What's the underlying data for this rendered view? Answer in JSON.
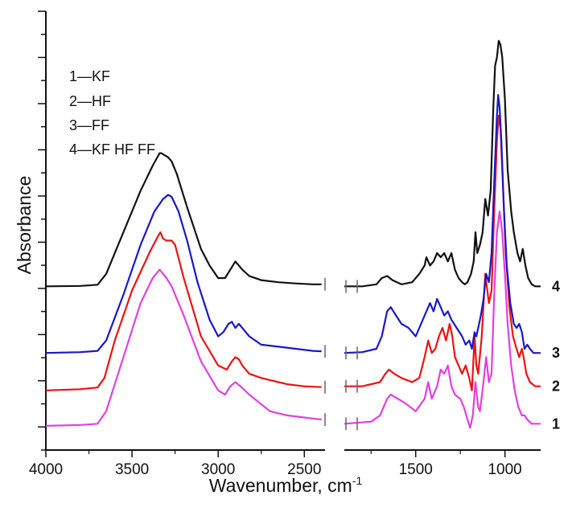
{
  "chart_data": {
    "type": "line",
    "title": "",
    "xlabel": "Wavenumber, cm",
    "xlabel_superscript": "-1",
    "ylabel": "Absorbance",
    "x_reversed": true,
    "axis_break": [
      2380,
      1900
    ],
    "xlim": [
      4000,
      800
    ],
    "ylim": [
      0,
      1
    ],
    "x_ticks": [
      4000,
      3500,
      3000,
      2500,
      1500,
      1000
    ],
    "x_tick_labels": [
      "4000",
      "3500",
      "3000",
      "2500",
      "1500",
      "1000"
    ],
    "y_ticks_shown_without_labels": true,
    "legend": [
      "1—KF",
      "2—HF",
      "3—FF",
      "4—KF HF FF"
    ],
    "series": [
      {
        "name": "1",
        "label": "1",
        "color": "#e040e0",
        "points": [
          [
            4000,
            0.035
          ],
          [
            3800,
            0.037
          ],
          [
            3700,
            0.04
          ],
          [
            3650,
            0.07
          ],
          [
            3550,
            0.2
          ],
          [
            3450,
            0.33
          ],
          [
            3380,
            0.39
          ],
          [
            3340,
            0.41
          ],
          [
            3320,
            0.4
          ],
          [
            3300,
            0.39
          ],
          [
            3270,
            0.37
          ],
          [
            3200,
            0.3
          ],
          [
            3100,
            0.19
          ],
          [
            3000,
            0.12
          ],
          [
            2960,
            0.11
          ],
          [
            2930,
            0.13
          ],
          [
            2900,
            0.14
          ],
          [
            2870,
            0.13
          ],
          [
            2820,
            0.11
          ],
          [
            2700,
            0.07
          ],
          [
            2600,
            0.06
          ],
          [
            2500,
            0.055
          ],
          [
            2400,
            0.05
          ],
          [
            1900,
            0.04
          ],
          [
            1750,
            0.045
          ],
          [
            1700,
            0.06
          ],
          [
            1660,
            0.1
          ],
          [
            1640,
            0.11
          ],
          [
            1600,
            0.1
          ],
          [
            1560,
            0.09
          ],
          [
            1500,
            0.07
          ],
          [
            1450,
            0.1
          ],
          [
            1430,
            0.14
          ],
          [
            1410,
            0.1
          ],
          [
            1380,
            0.13
          ],
          [
            1360,
            0.17
          ],
          [
            1340,
            0.16
          ],
          [
            1320,
            0.18
          ],
          [
            1300,
            0.13
          ],
          [
            1280,
            0.11
          ],
          [
            1250,
            0.1
          ],
          [
            1230,
            0.08
          ],
          [
            1210,
            0.05
          ],
          [
            1195,
            0.03
          ],
          [
            1180,
            0.06
          ],
          [
            1165,
            0.14
          ],
          [
            1150,
            0.08
          ],
          [
            1140,
            0.07
          ],
          [
            1120,
            0.14
          ],
          [
            1105,
            0.2
          ],
          [
            1090,
            0.14
          ],
          [
            1075,
            0.16
          ],
          [
            1060,
            0.35
          ],
          [
            1045,
            0.5
          ],
          [
            1030,
            0.55
          ],
          [
            1015,
            0.5
          ],
          [
            1000,
            0.4
          ],
          [
            985,
            0.28
          ],
          [
            965,
            0.18
          ],
          [
            945,
            0.12
          ],
          [
            925,
            0.08
          ],
          [
            905,
            0.06
          ],
          [
            890,
            0.06
          ],
          [
            875,
            0.05
          ],
          [
            850,
            0.04
          ],
          [
            820,
            0.04
          ],
          [
            800,
            0.04
          ]
        ]
      },
      {
        "name": "2",
        "label": "2",
        "color": "#ee1111",
        "points": [
          [
            4000,
            0.12
          ],
          [
            3800,
            0.123
          ],
          [
            3700,
            0.127
          ],
          [
            3660,
            0.15
          ],
          [
            3600,
            0.24
          ],
          [
            3500,
            0.36
          ],
          [
            3400,
            0.45
          ],
          [
            3350,
            0.49
          ],
          [
            3335,
            0.5
          ],
          [
            3320,
            0.485
          ],
          [
            3300,
            0.48
          ],
          [
            3270,
            0.48
          ],
          [
            3250,
            0.47
          ],
          [
            3200,
            0.39
          ],
          [
            3150,
            0.32
          ],
          [
            3100,
            0.25
          ],
          [
            3000,
            0.18
          ],
          [
            2950,
            0.17
          ],
          [
            2920,
            0.19
          ],
          [
            2900,
            0.2
          ],
          [
            2880,
            0.195
          ],
          [
            2860,
            0.18
          ],
          [
            2820,
            0.16
          ],
          [
            2750,
            0.15
          ],
          [
            2700,
            0.145
          ],
          [
            2650,
            0.14
          ],
          [
            2600,
            0.135
          ],
          [
            2500,
            0.13
          ],
          [
            2400,
            0.128
          ],
          [
            1900,
            0.13
          ],
          [
            1800,
            0.13
          ],
          [
            1700,
            0.14
          ],
          [
            1670,
            0.16
          ],
          [
            1650,
            0.17
          ],
          [
            1620,
            0.16
          ],
          [
            1580,
            0.15
          ],
          [
            1520,
            0.14
          ],
          [
            1480,
            0.15
          ],
          [
            1450,
            0.2
          ],
          [
            1430,
            0.24
          ],
          [
            1410,
            0.21
          ],
          [
            1390,
            0.22
          ],
          [
            1370,
            0.25
          ],
          [
            1350,
            0.27
          ],
          [
            1330,
            0.24
          ],
          [
            1310,
            0.28
          ],
          [
            1295,
            0.25
          ],
          [
            1280,
            0.2
          ],
          [
            1260,
            0.18
          ],
          [
            1240,
            0.16
          ],
          [
            1220,
            0.18
          ],
          [
            1200,
            0.15
          ],
          [
            1185,
            0.12
          ],
          [
            1170,
            0.25
          ],
          [
            1160,
            0.18
          ],
          [
            1150,
            0.16
          ],
          [
            1130,
            0.25
          ],
          [
            1110,
            0.4
          ],
          [
            1090,
            0.33
          ],
          [
            1075,
            0.36
          ],
          [
            1060,
            0.55
          ],
          [
            1045,
            0.72
          ],
          [
            1035,
            0.78
          ],
          [
            1025,
            0.75
          ],
          [
            1010,
            0.6
          ],
          [
            995,
            0.45
          ],
          [
            975,
            0.32
          ],
          [
            955,
            0.25
          ],
          [
            935,
            0.22
          ],
          [
            920,
            0.2
          ],
          [
            905,
            0.22
          ],
          [
            895,
            0.2
          ],
          [
            880,
            0.16
          ],
          [
            860,
            0.14
          ],
          [
            830,
            0.13
          ],
          [
            800,
            0.13
          ]
        ]
      },
      {
        "name": "3",
        "label": "3",
        "color": "#1818cc",
        "points": [
          [
            4000,
            0.21
          ],
          [
            3800,
            0.212
          ],
          [
            3700,
            0.215
          ],
          [
            3650,
            0.24
          ],
          [
            3550,
            0.35
          ],
          [
            3450,
            0.47
          ],
          [
            3370,
            0.55
          ],
          [
            3320,
            0.58
          ],
          [
            3290,
            0.59
          ],
          [
            3270,
            0.585
          ],
          [
            3230,
            0.55
          ],
          [
            3180,
            0.48
          ],
          [
            3120,
            0.38
          ],
          [
            3050,
            0.29
          ],
          [
            3000,
            0.25
          ],
          [
            2970,
            0.26
          ],
          [
            2940,
            0.28
          ],
          [
            2920,
            0.285
          ],
          [
            2900,
            0.27
          ],
          [
            2880,
            0.28
          ],
          [
            2860,
            0.27
          ],
          [
            2820,
            0.25
          ],
          [
            2750,
            0.23
          ],
          [
            2650,
            0.225
          ],
          [
            2550,
            0.22
          ],
          [
            2450,
            0.215
          ],
          [
            2400,
            0.214
          ],
          [
            1900,
            0.21
          ],
          [
            1800,
            0.212
          ],
          [
            1720,
            0.22
          ],
          [
            1690,
            0.25
          ],
          [
            1660,
            0.31
          ],
          [
            1640,
            0.32
          ],
          [
            1610,
            0.3
          ],
          [
            1580,
            0.28
          ],
          [
            1540,
            0.27
          ],
          [
            1500,
            0.25
          ],
          [
            1470,
            0.28
          ],
          [
            1450,
            0.3
          ],
          [
            1420,
            0.33
          ],
          [
            1400,
            0.31
          ],
          [
            1380,
            0.34
          ],
          [
            1360,
            0.32
          ],
          [
            1340,
            0.3
          ],
          [
            1320,
            0.31
          ],
          [
            1300,
            0.29
          ],
          [
            1270,
            0.27
          ],
          [
            1240,
            0.25
          ],
          [
            1220,
            0.23
          ],
          [
            1200,
            0.24
          ],
          [
            1185,
            0.22
          ],
          [
            1170,
            0.26
          ],
          [
            1160,
            0.25
          ],
          [
            1150,
            0.27
          ],
          [
            1135,
            0.3
          ],
          [
            1120,
            0.34
          ],
          [
            1105,
            0.4
          ],
          [
            1090,
            0.38
          ],
          [
            1075,
            0.45
          ],
          [
            1060,
            0.62
          ],
          [
            1045,
            0.78
          ],
          [
            1038,
            0.83
          ],
          [
            1030,
            0.8
          ],
          [
            1020,
            0.72
          ],
          [
            1005,
            0.55
          ],
          [
            990,
            0.42
          ],
          [
            970,
            0.33
          ],
          [
            950,
            0.28
          ],
          [
            935,
            0.27
          ],
          [
            920,
            0.28
          ],
          [
            905,
            0.26
          ],
          [
            890,
            0.22
          ],
          [
            875,
            0.23
          ],
          [
            860,
            0.22
          ],
          [
            840,
            0.21
          ],
          [
            820,
            0.21
          ],
          [
            800,
            0.21
          ]
        ]
      },
      {
        "name": "4",
        "label": "4",
        "color": "#111111",
        "points": [
          [
            4000,
            0.37
          ],
          [
            3800,
            0.371
          ],
          [
            3700,
            0.374
          ],
          [
            3650,
            0.4
          ],
          [
            3550,
            0.5
          ],
          [
            3450,
            0.6
          ],
          [
            3380,
            0.66
          ],
          [
            3340,
            0.69
          ],
          [
            3330,
            0.69
          ],
          [
            3310,
            0.685
          ],
          [
            3290,
            0.68
          ],
          [
            3270,
            0.67
          ],
          [
            3240,
            0.64
          ],
          [
            3180,
            0.56
          ],
          [
            3100,
            0.46
          ],
          [
            3050,
            0.42
          ],
          [
            3000,
            0.39
          ],
          [
            2960,
            0.39
          ],
          [
            2930,
            0.41
          ],
          [
            2900,
            0.43
          ],
          [
            2880,
            0.42
          ],
          [
            2860,
            0.41
          ],
          [
            2820,
            0.395
          ],
          [
            2750,
            0.385
          ],
          [
            2650,
            0.38
          ],
          [
            2550,
            0.377
          ],
          [
            2450,
            0.375
          ],
          [
            2400,
            0.375
          ],
          [
            1900,
            0.37
          ],
          [
            1800,
            0.37
          ],
          [
            1720,
            0.375
          ],
          [
            1690,
            0.39
          ],
          [
            1660,
            0.395
          ],
          [
            1630,
            0.385
          ],
          [
            1580,
            0.375
          ],
          [
            1520,
            0.38
          ],
          [
            1480,
            0.4
          ],
          [
            1450,
            0.42
          ],
          [
            1440,
            0.44
          ],
          [
            1420,
            0.42
          ],
          [
            1400,
            0.43
          ],
          [
            1380,
            0.45
          ],
          [
            1360,
            0.44
          ],
          [
            1340,
            0.45
          ],
          [
            1320,
            0.43
          ],
          [
            1300,
            0.45
          ],
          [
            1280,
            0.41
          ],
          [
            1260,
            0.39
          ],
          [
            1240,
            0.38
          ],
          [
            1225,
            0.375
          ],
          [
            1210,
            0.38
          ],
          [
            1190,
            0.4
          ],
          [
            1175,
            0.43
          ],
          [
            1165,
            0.5
          ],
          [
            1155,
            0.45
          ],
          [
            1140,
            0.47
          ],
          [
            1125,
            0.5
          ],
          [
            1110,
            0.58
          ],
          [
            1095,
            0.54
          ],
          [
            1080,
            0.6
          ],
          [
            1065,
            0.8
          ],
          [
            1055,
            0.9
          ],
          [
            1045,
            0.92
          ],
          [
            1035,
            0.96
          ],
          [
            1025,
            0.95
          ],
          [
            1015,
            0.92
          ],
          [
            1000,
            0.82
          ],
          [
            985,
            0.65
          ],
          [
            965,
            0.55
          ],
          [
            950,
            0.5
          ],
          [
            930,
            0.45
          ],
          [
            915,
            0.43
          ],
          [
            900,
            0.46
          ],
          [
            885,
            0.42
          ],
          [
            870,
            0.39
          ],
          [
            850,
            0.375
          ],
          [
            830,
            0.37
          ],
          [
            800,
            0.37
          ]
        ]
      }
    ],
    "curve_labels": [
      {
        "series": "4",
        "text": "4"
      },
      {
        "series": "3",
        "text": "3"
      },
      {
        "series": "2",
        "text": "2"
      },
      {
        "series": "1",
        "text": "1"
      }
    ]
  }
}
